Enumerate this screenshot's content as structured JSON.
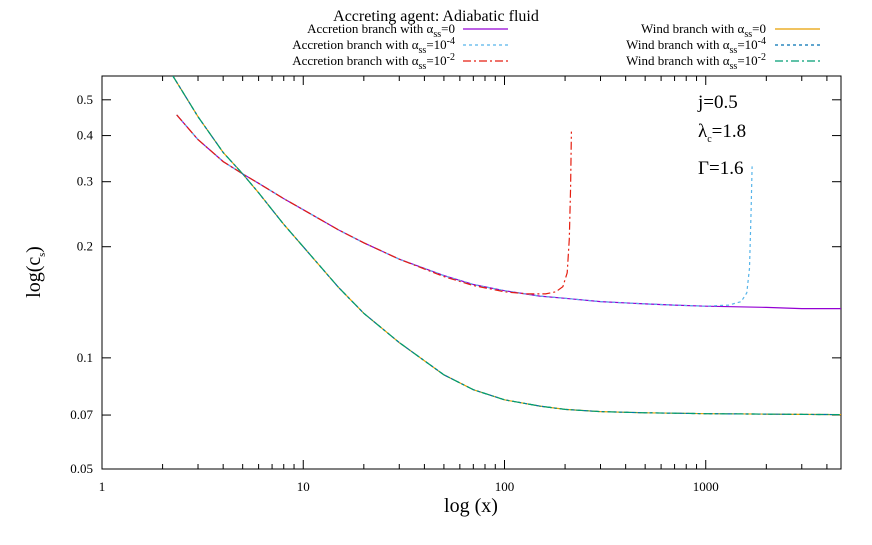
{
  "chart_data": {
    "type": "line",
    "title": "Accreting agent: Adiabatic fluid",
    "xlabel": "log (x)",
    "ylabel_main": "log(c",
    "ylabel_sub": "s",
    "ylabel_tail": ")",
    "xscale": "log",
    "yscale": "log",
    "xlim": [
      1,
      4700
    ],
    "ylim": [
      0.05,
      0.58
    ],
    "grid": false,
    "legend_placement": "top, outside plot, two columns",
    "x_ticks": [
      1,
      10,
      100,
      1000
    ],
    "x_tick_labels": [
      "1",
      "10",
      "100",
      "1000"
    ],
    "y_ticks": [
      0.05,
      0.07,
      0.1,
      0.2,
      0.3,
      0.4,
      0.5
    ],
    "y_tick_labels": [
      "0.05",
      "0.07",
      "0.1",
      "0.2",
      "0.3",
      "0.4",
      "0.5"
    ],
    "annotations": [
      {
        "main": "j=0.5",
        "sub": "",
        "tail": ""
      },
      {
        "main": "λ",
        "sub": "c",
        "tail": "=1.8"
      },
      {
        "main": "Γ=1.6",
        "sub": "",
        "tail": ""
      }
    ],
    "series": [
      {
        "legend_main": "Accretion branch with α",
        "legend_sub": "ss",
        "legend_tail": "=0",
        "color": "#9400d3",
        "dash": "",
        "x": [
          2.35,
          3,
          4,
          5,
          6,
          8,
          10,
          15,
          20,
          30,
          50,
          70,
          100,
          150,
          200,
          300,
          500,
          700,
          1000,
          2000,
          3000,
          4700
        ],
        "y": [
          0.455,
          0.39,
          0.34,
          0.315,
          0.297,
          0.27,
          0.252,
          0.222,
          0.205,
          0.185,
          0.167,
          0.158,
          0.152,
          0.147,
          0.145,
          0.142,
          0.14,
          0.139,
          0.138,
          0.137,
          0.136,
          0.136
        ]
      },
      {
        "legend_main": "Accretion branch with α",
        "legend_sub": "ss",
        "legend_tail": "=10",
        "legend_sup": "-4",
        "color": "#56b4e9",
        "dash": "3,3",
        "x": [
          2.35,
          3,
          4,
          5,
          6,
          8,
          10,
          15,
          20,
          30,
          50,
          70,
          100,
          150,
          200,
          300,
          500,
          700,
          1000,
          1300,
          1500,
          1600,
          1650,
          1680,
          1700
        ],
        "y": [
          0.455,
          0.39,
          0.34,
          0.315,
          0.297,
          0.27,
          0.252,
          0.222,
          0.205,
          0.185,
          0.167,
          0.158,
          0.152,
          0.147,
          0.145,
          0.142,
          0.14,
          0.139,
          0.138,
          0.139,
          0.142,
          0.15,
          0.175,
          0.25,
          0.33
        ]
      },
      {
        "legend_main": "Accretion branch with α",
        "legend_sub": "ss",
        "legend_tail": "=10",
        "legend_sup": "-2",
        "color": "#e51e10",
        "dash": "8,3,2,3",
        "x": [
          2.35,
          3,
          4,
          5,
          6,
          8,
          10,
          15,
          20,
          30,
          50,
          70,
          100,
          130,
          160,
          180,
          195,
          205,
          210,
          213,
          215
        ],
        "y": [
          0.455,
          0.39,
          0.34,
          0.315,
          0.297,
          0.27,
          0.252,
          0.222,
          0.205,
          0.185,
          0.166,
          0.157,
          0.151,
          0.149,
          0.149,
          0.151,
          0.156,
          0.17,
          0.21,
          0.29,
          0.41
        ]
      },
      {
        "legend_main": "Wind branch with α",
        "legend_sub": "ss",
        "legend_tail": "=0",
        "color": "#e69f00",
        "dash": "",
        "x": [
          2.25,
          3,
          4,
          5,
          6,
          8,
          10,
          15,
          20,
          30,
          50,
          70,
          100,
          150,
          200,
          300,
          500,
          700,
          1000,
          2000,
          3000,
          4700
        ],
        "y": [
          0.58,
          0.45,
          0.36,
          0.315,
          0.28,
          0.23,
          0.2,
          0.155,
          0.132,
          0.11,
          0.09,
          0.082,
          0.077,
          0.074,
          0.0725,
          0.0715,
          0.071,
          0.0708,
          0.0706,
          0.0704,
          0.0703,
          0.0702
        ]
      },
      {
        "legend_main": "Wind branch with α",
        "legend_sub": "ss",
        "legend_tail": "=10",
        "legend_sup": "-4",
        "color": "#0072b2",
        "dash": "3,3",
        "x": [
          2.25,
          3,
          4,
          5,
          6,
          8,
          10,
          15,
          20,
          30,
          50,
          70,
          100,
          150,
          200,
          300,
          500,
          700,
          1000,
          2000,
          3000,
          4700
        ],
        "y": [
          0.58,
          0.45,
          0.36,
          0.315,
          0.28,
          0.23,
          0.2,
          0.155,
          0.132,
          0.11,
          0.09,
          0.082,
          0.077,
          0.074,
          0.0725,
          0.0715,
          0.071,
          0.0708,
          0.0706,
          0.0704,
          0.0703,
          0.0702
        ]
      },
      {
        "legend_main": "Wind branch with α",
        "legend_sub": "ss",
        "legend_tail": "=10",
        "legend_sup": "-2",
        "color": "#009e73",
        "dash": "8,3,2,3",
        "x": [
          2.25,
          3,
          4,
          5,
          6,
          8,
          10,
          15,
          20,
          30,
          50,
          70,
          100,
          150,
          200,
          300,
          500,
          700,
          1000,
          2000,
          3000,
          4700
        ],
        "y": [
          0.58,
          0.45,
          0.36,
          0.315,
          0.28,
          0.23,
          0.2,
          0.155,
          0.132,
          0.11,
          0.09,
          0.082,
          0.077,
          0.074,
          0.0725,
          0.0715,
          0.071,
          0.0708,
          0.0706,
          0.0704,
          0.0703,
          0.0702
        ]
      }
    ]
  }
}
